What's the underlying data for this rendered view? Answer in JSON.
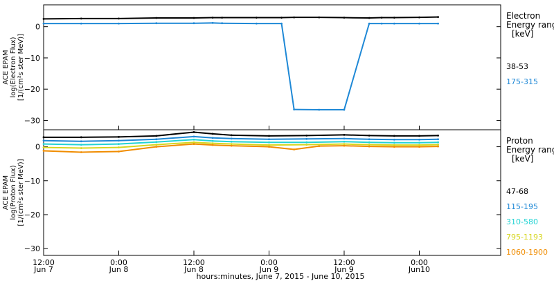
{
  "x_axis_title": "hours:minutes, June  7, 2015 - June 10, 2015",
  "x_ticks": [
    {
      "t": 0,
      "top": "12:00",
      "bottom": "Jun 7"
    },
    {
      "t": 12,
      "top": "0:00",
      "bottom": "Jun 8"
    },
    {
      "t": 24,
      "top": "12:00",
      "bottom": "Jun 8"
    },
    {
      "t": 36,
      "top": "0:00",
      "bottom": "Jun 9"
    },
    {
      "t": 48,
      "top": "12:00",
      "bottom": "Jun 9"
    },
    {
      "t": 60,
      "top": "0:00",
      "bottom": "Jun10"
    }
  ],
  "chart_data": [
    {
      "type": "scatter",
      "panel": "electron",
      "ylabel_lines": [
        "ACE EPAM",
        "log(Electron Flux)",
        "[1/(cm²s ster MeV)]"
      ],
      "legend_title_lines": [
        "Electron",
        "Energy ranges",
        "[keV]"
      ],
      "ylim": [
        -33,
        7
      ],
      "yticks": [
        0,
        -10,
        -20,
        -30
      ],
      "x_unit": "hours since 12:00 Jun 7, 2015",
      "xlim": [
        0,
        73
      ],
      "series": [
        {
          "name": "38-53",
          "color": "#000000",
          "x": [
            0,
            6,
            12,
            18,
            24,
            27,
            28.5,
            34,
            38,
            40,
            44,
            48,
            52,
            54,
            56,
            60,
            63
          ],
          "y": [
            2.5,
            2.6,
            2.6,
            2.8,
            2.8,
            2.9,
            2.9,
            2.9,
            2.9,
            3.0,
            3.0,
            2.9,
            2.8,
            2.9,
            2.9,
            3.0,
            3.1
          ]
        },
        {
          "name": "175-315",
          "color": "#1e88d6",
          "x": [
            0,
            6,
            12,
            18,
            24,
            27,
            28.5,
            34,
            38,
            40,
            44,
            48,
            52,
            54,
            56,
            60,
            63
          ],
          "y": [
            1.0,
            1.0,
            1.0,
            1.1,
            1.1,
            1.2,
            1.1,
            1.0,
            1.0,
            -26.5,
            -26.6,
            -26.6,
            1.0,
            1.0,
            1.0,
            1.0,
            1.0
          ]
        }
      ]
    },
    {
      "type": "scatter",
      "panel": "proton",
      "ylabel_lines": [
        "ACE EPAM",
        "log(Proton Flux)",
        "[1/(cm²s ster MeV)]"
      ],
      "legend_title_lines": [
        "Proton",
        "Energy ranges",
        "[keV]"
      ],
      "ylim": [
        -32,
        5
      ],
      "yticks": [
        0,
        -10,
        -20,
        -30
      ],
      "x_unit": "hours since 12:00 Jun 7, 2015",
      "xlim": [
        0,
        73
      ],
      "series": [
        {
          "name": "47-68",
          "color": "#000000",
          "x": [
            0,
            6,
            12,
            18,
            24,
            27,
            30,
            36,
            42,
            48,
            52,
            56,
            60,
            63
          ],
          "y": [
            2.8,
            2.8,
            2.9,
            3.2,
            4.3,
            3.8,
            3.4,
            3.2,
            3.3,
            3.5,
            3.3,
            3.2,
            3.2,
            3.3
          ]
        },
        {
          "name": "115-195",
          "color": "#1e88d6",
          "x": [
            0,
            6,
            12,
            18,
            24,
            27,
            30,
            36,
            42,
            48,
            52,
            56,
            60,
            63
          ],
          "y": [
            1.8,
            1.6,
            1.8,
            2.2,
            3.0,
            2.6,
            2.4,
            2.2,
            2.3,
            2.4,
            2.2,
            2.1,
            2.1,
            2.2
          ]
        },
        {
          "name": "310-580",
          "color": "#22d3d3",
          "x": [
            0,
            6,
            12,
            18,
            24,
            27,
            30,
            36,
            42,
            48,
            52,
            56,
            60,
            63
          ],
          "y": [
            0.8,
            0.6,
            0.8,
            1.4,
            2.1,
            1.7,
            1.5,
            1.3,
            1.3,
            1.5,
            1.3,
            1.2,
            1.2,
            1.3
          ]
        },
        {
          "name": "795-1193",
          "color": "#d6d61e",
          "x": [
            0,
            6,
            12,
            18,
            24,
            27,
            30,
            36,
            42,
            48,
            52,
            56,
            60,
            63
          ],
          "y": [
            -0.2,
            -0.4,
            -0.2,
            0.6,
            1.3,
            1.0,
            0.8,
            0.5,
            0.6,
            0.8,
            0.6,
            0.5,
            0.5,
            0.6
          ]
        },
        {
          "name": "1060-1900",
          "color": "#f08c00",
          "x": [
            0,
            6,
            12,
            18,
            24,
            27,
            30,
            36,
            40,
            44,
            48,
            52,
            56,
            60,
            63
          ],
          "y": [
            -1.2,
            -1.6,
            -1.4,
            0.0,
            0.8,
            0.5,
            0.3,
            0.0,
            -0.8,
            0.2,
            0.3,
            0.1,
            0.0,
            0.0,
            0.1
          ]
        }
      ]
    }
  ]
}
